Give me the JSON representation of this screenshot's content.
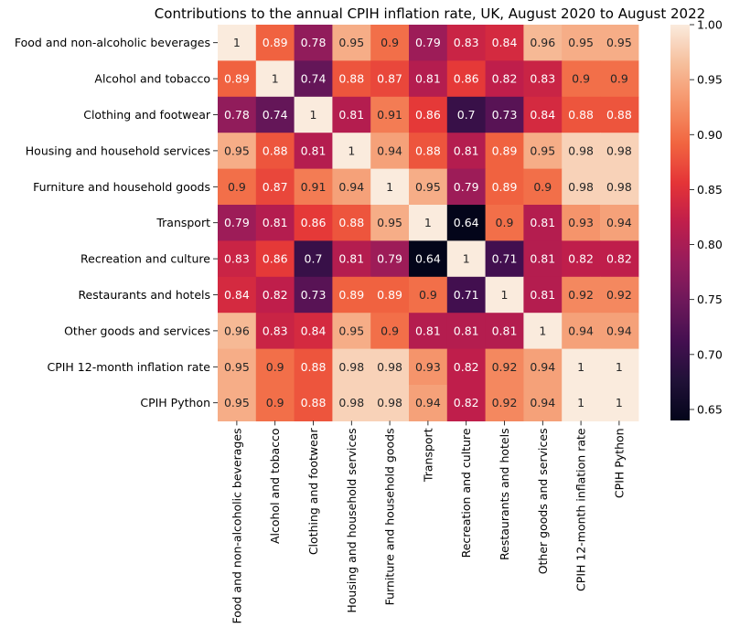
{
  "chart_data": {
    "type": "heatmap",
    "title": "Contributions to the annual CPIH inflation rate, UK, August 2020 to August 2022",
    "categories": [
      "Food and non-alcoholic beverages",
      "Alcohol and tobacco",
      "Clothing and footwear",
      "Housing and household services",
      "Furniture and household goods",
      "Transport",
      "Recreation and culture",
      "Restaurants and hotels",
      "Other goods and services",
      "CPIH 12-month inflation rate",
      "CPIH Python"
    ],
    "values": [
      [
        1,
        0.89,
        0.78,
        0.95,
        0.9,
        0.79,
        0.83,
        0.84,
        0.96,
        0.95,
        0.95
      ],
      [
        0.89,
        1,
        0.74,
        0.88,
        0.87,
        0.81,
        0.86,
        0.82,
        0.83,
        0.9,
        0.9
      ],
      [
        0.78,
        0.74,
        1,
        0.81,
        0.91,
        0.86,
        0.7,
        0.73,
        0.84,
        0.88,
        0.88
      ],
      [
        0.95,
        0.88,
        0.81,
        1,
        0.94,
        0.88,
        0.81,
        0.89,
        0.95,
        0.98,
        0.98
      ],
      [
        0.9,
        0.87,
        0.91,
        0.94,
        1,
        0.95,
        0.79,
        0.89,
        0.9,
        0.98,
        0.98
      ],
      [
        0.79,
        0.81,
        0.86,
        0.88,
        0.95,
        1,
        0.64,
        0.9,
        0.81,
        0.93,
        0.94
      ],
      [
        0.83,
        0.86,
        0.7,
        0.81,
        0.79,
        0.64,
        1,
        0.71,
        0.81,
        0.82,
        0.82
      ],
      [
        0.84,
        0.82,
        0.73,
        0.89,
        0.89,
        0.9,
        0.71,
        1,
        0.81,
        0.92,
        0.92
      ],
      [
        0.96,
        0.83,
        0.84,
        0.95,
        0.9,
        0.81,
        0.81,
        0.81,
        1,
        0.94,
        0.94
      ],
      [
        0.95,
        0.9,
        0.88,
        0.98,
        0.98,
        0.93,
        0.82,
        0.92,
        0.94,
        1,
        1
      ],
      [
        0.95,
        0.9,
        0.88,
        0.98,
        0.98,
        0.94,
        0.82,
        0.92,
        0.94,
        1,
        1
      ]
    ],
    "colorbar": {
      "min": 0.64,
      "max": 1.0,
      "ticks": [
        0.65,
        0.7,
        0.75,
        0.8,
        0.85,
        0.9,
        0.95,
        1.0
      ],
      "tick_labels": [
        "0.65",
        "0.70",
        "0.75",
        "0.80",
        "0.85",
        "0.90",
        "0.95",
        "1.00"
      ],
      "colormap": "rocket"
    },
    "annotations": true,
    "grid": false
  }
}
